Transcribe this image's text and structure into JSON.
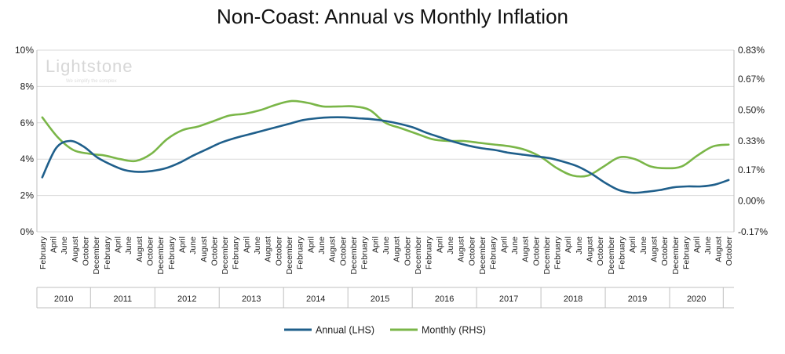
{
  "chart_data": {
    "type": "line",
    "title": "Non-Coast: Annual vs Monthly Inflation",
    "watermark": {
      "name": "Lightstone",
      "tagline": "We simplify the complex"
    },
    "y_left": {
      "ticks": [
        "0%",
        "2%",
        "4%",
        "6%",
        "8%",
        "10%"
      ],
      "ylim": [
        0,
        10
      ]
    },
    "y_right": {
      "ticks": [
        "-0.17%",
        "0.00%",
        "0.17%",
        "0.33%",
        "0.50%",
        "0.67%",
        "0.83%"
      ],
      "ylim": [
        -0.17,
        0.83
      ]
    },
    "x_month_labels": [
      "February",
      "April",
      "June",
      "August",
      "October",
      "December",
      "February",
      "April",
      "June",
      "August",
      "October",
      "December",
      "February",
      "April",
      "June",
      "August",
      "October",
      "December",
      "February",
      "April",
      "June",
      "August",
      "October",
      "December",
      "February",
      "April",
      "June",
      "August",
      "October",
      "December",
      "February",
      "April",
      "June",
      "August",
      "October",
      "December",
      "February",
      "April",
      "June",
      "August",
      "October",
      "December",
      "February",
      "April",
      "June",
      "August",
      "October",
      "December",
      "February",
      "April",
      "June",
      "August",
      "October",
      "December",
      "February",
      "April",
      "June",
      "August",
      "October",
      "December",
      "February",
      "April",
      "June",
      "August",
      "October"
    ],
    "years": [
      {
        "label": "2010",
        "start": 0,
        "count": 5
      },
      {
        "label": "2011",
        "start": 5,
        "count": 6
      },
      {
        "label": "2012",
        "start": 11,
        "count": 6
      },
      {
        "label": "2013",
        "start": 17,
        "count": 6
      },
      {
        "label": "2014",
        "start": 23,
        "count": 6
      },
      {
        "label": "2015",
        "start": 29,
        "count": 6
      },
      {
        "label": "2016",
        "start": 35,
        "count": 6
      },
      {
        "label": "2017",
        "start": 41,
        "count": 6
      },
      {
        "label": "2018",
        "start": 47,
        "count": 6
      },
      {
        "label": "2019",
        "start": 53,
        "count": 6
      },
      {
        "label": "2020",
        "start": 59,
        "count": 5
      }
    ],
    "series": [
      {
        "name": "Annual (LHS)",
        "color": "#1f5f8b",
        "axis": "left",
        "values": [
          3.0,
          4.6,
          5.0,
          4.7,
          4.1,
          3.7,
          3.4,
          3.3,
          3.35,
          3.5,
          3.8,
          4.2,
          4.55,
          4.9,
          5.15,
          5.35,
          5.55,
          5.75,
          5.95,
          6.15,
          6.25,
          6.3,
          6.3,
          6.25,
          6.2,
          6.1,
          5.95,
          5.75,
          5.45,
          5.2,
          4.95,
          4.75,
          4.6,
          4.5,
          4.35,
          4.25,
          4.15,
          4.05,
          3.85,
          3.6,
          3.2,
          2.7,
          2.3,
          2.15,
          2.2,
          2.3,
          2.45,
          2.5,
          2.5,
          2.6,
          2.85
        ]
      },
      {
        "name": "Monthly (RHS)",
        "color": "#7ab648",
        "axis": "right",
        "values": [
          0.46,
          0.35,
          0.28,
          0.26,
          0.25,
          0.23,
          0.22,
          0.26,
          0.34,
          0.39,
          0.41,
          0.44,
          0.47,
          0.48,
          0.5,
          0.53,
          0.55,
          0.54,
          0.52,
          0.52,
          0.52,
          0.5,
          0.43,
          0.4,
          0.37,
          0.34,
          0.33,
          0.33,
          0.32,
          0.31,
          0.3,
          0.28,
          0.24,
          0.18,
          0.14,
          0.14,
          0.19,
          0.24,
          0.23,
          0.19,
          0.18,
          0.19,
          0.25,
          0.3,
          0.31
        ]
      }
    ],
    "legend": {
      "position": "bottom",
      "entries": [
        "Annual (LHS)",
        "Monthly (RHS)"
      ]
    },
    "grid": true
  }
}
